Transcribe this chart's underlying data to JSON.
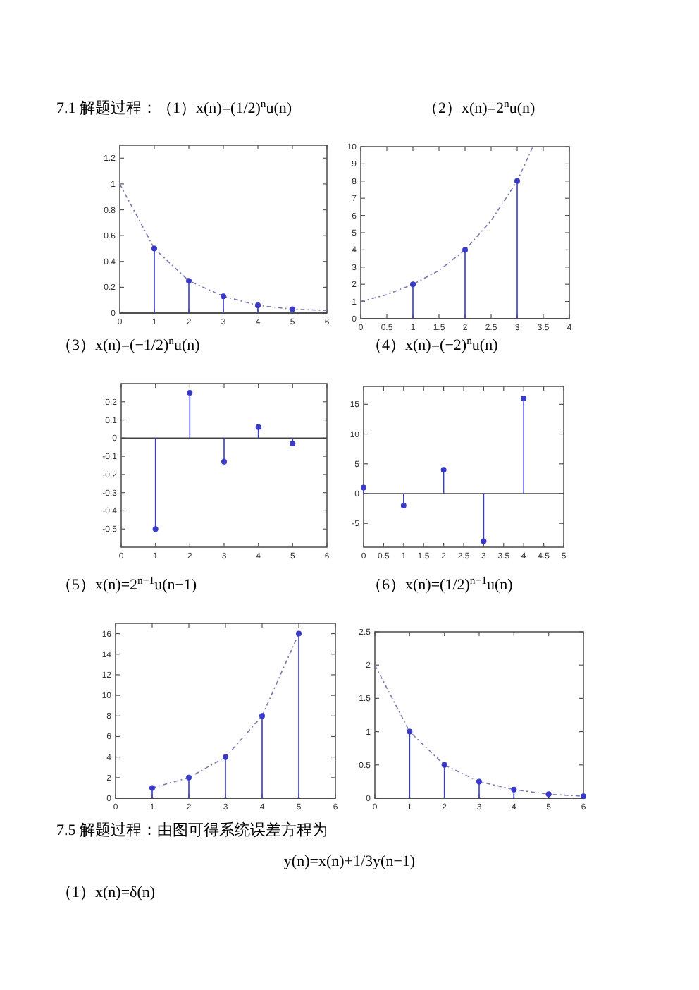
{
  "chart_data": [
    {
      "type": "lollipop",
      "title": "7.1 解题过程：（1）x(n)=(1/2)$^{n}$u(n)",
      "xlim": [
        0,
        6
      ],
      "ylim": [
        0,
        1.3
      ],
      "xticks": [
        0,
        1,
        2,
        3,
        4,
        5,
        6
      ],
      "yticks": [
        0,
        0.2,
        0.4,
        0.6,
        0.8,
        1,
        1.2
      ],
      "series": [
        {
          "type": "lollipop",
          "marker": "circle",
          "x": [
            1,
            2,
            3,
            4,
            5
          ],
          "values": [
            0.5,
            0.25,
            0.13,
            0.06,
            0.03
          ],
          "color": "#3a3ac8"
        },
        {
          "type": "line",
          "x": [
            0,
            1,
            2,
            3,
            4,
            5,
            6
          ],
          "values": [
            1,
            0.5,
            0.25,
            0.13,
            0.06,
            0.03,
            0.02
          ],
          "color": "#7a7ab0",
          "line_style": "dashed"
        }
      ]
    },
    {
      "type": "lollipop",
      "title": "（2）x(n)=2$^{n}$u(n)",
      "xlim": [
        0,
        4
      ],
      "ylim": [
        0,
        10
      ],
      "xticks": [
        0,
        0.5,
        1,
        1.5,
        2,
        2.5,
        3,
        3.5,
        4
      ],
      "yticks": [
        0,
        1,
        2,
        3,
        4,
        5,
        6,
        7,
        8,
        9,
        10
      ],
      "series": [
        {
          "type": "lollipop",
          "marker": "circle",
          "x": [
            1,
            2,
            3
          ],
          "values": [
            2,
            4,
            8
          ],
          "color": "#3a3ac8"
        },
        {
          "type": "line",
          "x": [
            0,
            0.5,
            1,
            1.5,
            2,
            2.5,
            3,
            3.3
          ],
          "values": [
            1,
            1.4,
            2,
            2.8,
            4,
            5.7,
            8,
            10
          ],
          "color": "#7a7ab0",
          "line_style": "dashed"
        }
      ]
    },
    {
      "type": "lollipop",
      "title": "（3）x(n)=(−1/2)$^{n}$u(n)",
      "xlim": [
        0,
        6
      ],
      "ylim": [
        -0.6,
        0.3
      ],
      "xticks": [
        0,
        1,
        2,
        3,
        4,
        5,
        6
      ],
      "yticks": [
        -0.5,
        -0.4,
        -0.3,
        -0.2,
        -0.1,
        0,
        0.1,
        0.2
      ],
      "series": [
        {
          "type": "lollipop",
          "marker": "circle",
          "x": [
            1,
            2,
            3,
            4,
            5
          ],
          "values": [
            -0.5,
            0.25,
            -0.13,
            0.06,
            -0.03
          ],
          "color": "#3a3ac8"
        }
      ]
    },
    {
      "type": "lollipop",
      "title": "（4）x(n)=(−2)$^{n}$u(n)",
      "xlim": [
        0,
        5
      ],
      "ylim": [
        -9,
        18
      ],
      "xticks": [
        0,
        0.5,
        1,
        1.5,
        2,
        2.5,
        3,
        3.5,
        4,
        4.5,
        5
      ],
      "yticks": [
        -5,
        0,
        5,
        10,
        15
      ],
      "series": [
        {
          "type": "lollipop",
          "marker": "circle",
          "x": [
            0,
            1,
            2,
            3,
            4
          ],
          "values": [
            1,
            -2,
            4,
            -8,
            16
          ],
          "color": "#3a3ac8"
        }
      ]
    },
    {
      "type": "lollipop",
      "title": "（5）x(n)=2$^{n−1}$u(n−1)",
      "xlim": [
        0,
        6
      ],
      "ylim": [
        0,
        17
      ],
      "xticks": [
        0,
        1,
        2,
        3,
        4,
        5,
        6
      ],
      "yticks": [
        0,
        2,
        4,
        6,
        8,
        10,
        12,
        14,
        16
      ],
      "series": [
        {
          "type": "lollipop",
          "marker": "circle",
          "x": [
            1,
            2,
            3,
            4,
            5
          ],
          "values": [
            1,
            2,
            4,
            8,
            16
          ],
          "color": "#3a3ac8"
        },
        {
          "type": "line",
          "x": [
            1,
            2,
            3,
            4,
            5
          ],
          "values": [
            1,
            2,
            4,
            8,
            16
          ],
          "color": "#7a7ab0",
          "line_style": "dashed"
        }
      ]
    },
    {
      "type": "lollipop",
      "title": "（6）x(n)=(1/2)$^{n−1}$u(n)",
      "xlim": [
        0,
        6
      ],
      "ylim": [
        0,
        2.5
      ],
      "xticks": [
        0,
        1,
        2,
        3,
        4,
        5,
        6
      ],
      "yticks": [
        0,
        0.5,
        1,
        1.5,
        2,
        2.5
      ],
      "series": [
        {
          "type": "lollipop",
          "marker": "circle",
          "x": [
            1,
            2,
            3,
            4,
            5,
            6
          ],
          "values": [
            1,
            0.5,
            0.25,
            0.13,
            0.06,
            0.03
          ],
          "color": "#3a3ac8"
        },
        {
          "type": "line",
          "x": [
            0,
            1,
            2,
            3,
            4,
            5,
            6
          ],
          "values": [
            2,
            1,
            0.5,
            0.25,
            0.13,
            0.06,
            0.03
          ],
          "color": "#7a7ab0",
          "line_style": "dashed"
        }
      ]
    },
    {
      "type": "other",
      "annotations": [
        "7.5 解题过程：由图可得系统误差方程为",
        "y(n)=x(n)+1/3y(n−1)",
        "（1）x(n)=δ(n)"
      ]
    }
  ]
}
